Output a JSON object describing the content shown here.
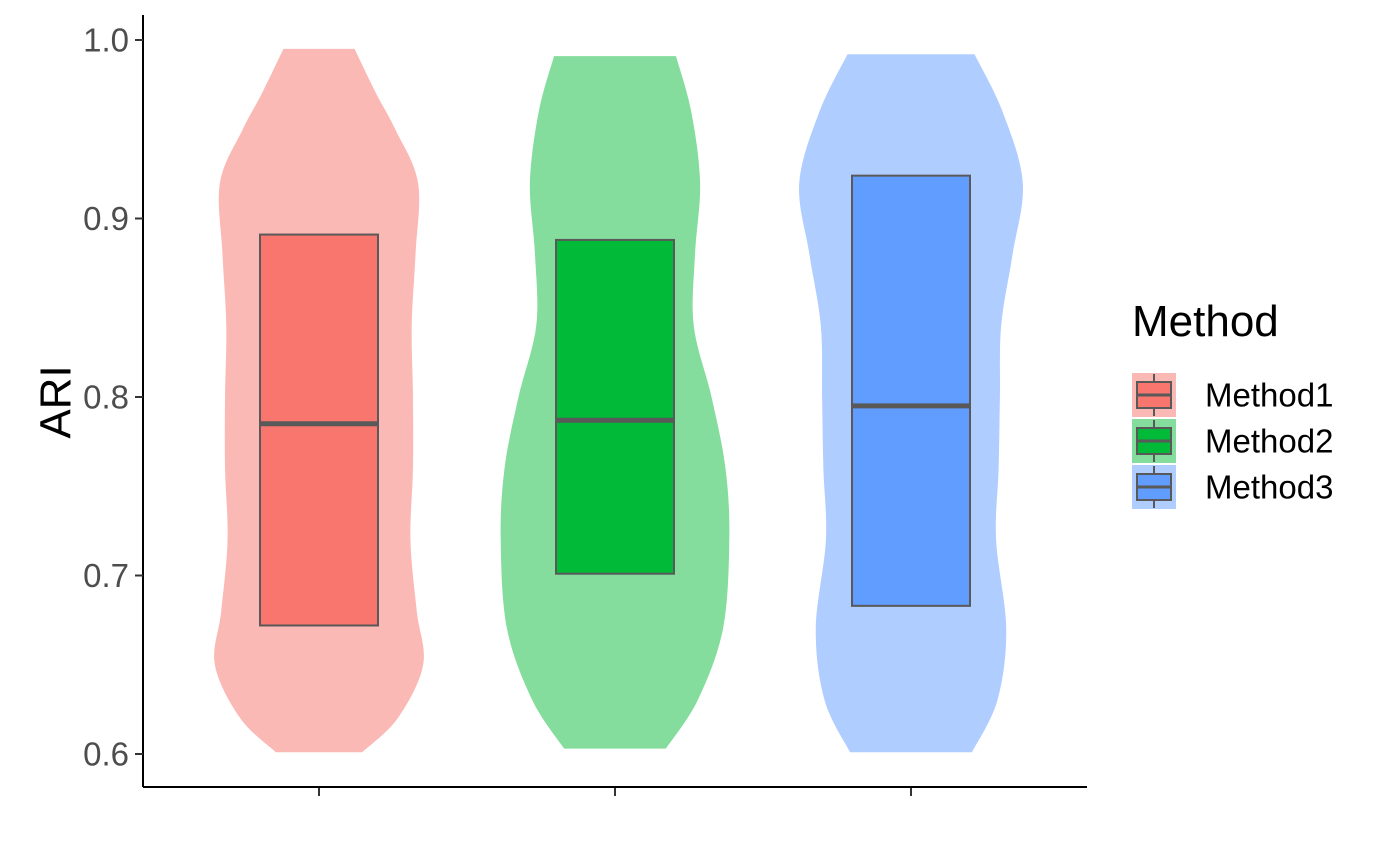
{
  "chart_data": {
    "type": "violin-box",
    "ylabel": "ARI",
    "ylim": [
      0.6,
      1.0
    ],
    "yticks": [
      "0.6",
      "0.7",
      "0.8",
      "0.9",
      "1.0"
    ],
    "ytick_values": [
      0.6,
      0.7,
      0.8,
      0.9,
      1.0
    ],
    "grid": false,
    "legend": {
      "title": "Method",
      "position": "right"
    },
    "series": [
      {
        "name": "Method1",
        "box": {
          "q1": 0.672,
          "median": 0.785,
          "q3": 0.891
        },
        "violin": {
          "ymin": 0.601,
          "ymax": 0.995,
          "profile": [
            [
              0.601,
              0.34
            ],
            [
              0.62,
              0.62
            ],
            [
              0.65,
              0.82
            ],
            [
              0.68,
              0.77
            ],
            [
              0.72,
              0.72
            ],
            [
              0.76,
              0.74
            ],
            [
              0.8,
              0.74
            ],
            [
              0.84,
              0.73
            ],
            [
              0.88,
              0.76
            ],
            [
              0.92,
              0.78
            ],
            [
              0.95,
              0.6
            ],
            [
              0.97,
              0.45
            ],
            [
              0.995,
              0.28
            ]
          ]
        },
        "colors": {
          "box": "#F8766D",
          "violin": "#FBB9B5"
        }
      },
      {
        "name": "Method2",
        "box": {
          "q1": 0.701,
          "median": 0.787,
          "q3": 0.888
        },
        "violin": {
          "ymin": 0.603,
          "ymax": 0.991,
          "profile": [
            [
              0.603,
              0.4
            ],
            [
              0.63,
              0.65
            ],
            [
              0.67,
              0.85
            ],
            [
              0.72,
              0.9
            ],
            [
              0.76,
              0.87
            ],
            [
              0.8,
              0.76
            ],
            [
              0.84,
              0.62
            ],
            [
              0.88,
              0.63
            ],
            [
              0.92,
              0.67
            ],
            [
              0.96,
              0.6
            ],
            [
              0.991,
              0.48
            ]
          ]
        },
        "colors": {
          "box": "#00BA38",
          "violin": "#84DD9C"
        }
      },
      {
        "name": "Method3",
        "box": {
          "q1": 0.683,
          "median": 0.795,
          "q3": 0.924
        },
        "violin": {
          "ymin": 0.601,
          "ymax": 0.992,
          "profile": [
            [
              0.601,
              0.48
            ],
            [
              0.63,
              0.68
            ],
            [
              0.67,
              0.75
            ],
            [
              0.72,
              0.67
            ],
            [
              0.76,
              0.69
            ],
            [
              0.8,
              0.7
            ],
            [
              0.84,
              0.71
            ],
            [
              0.88,
              0.8
            ],
            [
              0.92,
              0.88
            ],
            [
              0.96,
              0.72
            ],
            [
              0.992,
              0.5
            ]
          ]
        },
        "colors": {
          "box": "#619CFF",
          "violin": "#B0CDFF"
        }
      }
    ]
  }
}
